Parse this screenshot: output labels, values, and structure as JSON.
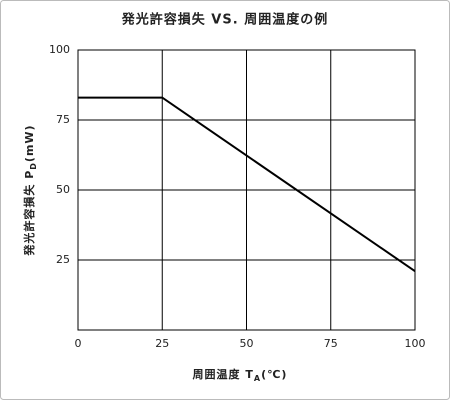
{
  "chart_data": {
    "type": "line",
    "title": "発光許容損失 VS. 周囲温度の例",
    "xlabel": [
      "周囲温度 T",
      "A",
      "(℃)"
    ],
    "ylabel": [
      "発光許容損失 P",
      "D",
      "(mW)"
    ],
    "x": [
      0,
      25,
      100
    ],
    "series": [
      {
        "color": "#000000",
        "values": [
          83,
          83,
          21
        ]
      }
    ],
    "xlim": [
      0,
      100
    ],
    "ylim": [
      0,
      100
    ],
    "xticks": [
      0,
      25,
      50,
      75,
      100
    ],
    "yticks": [
      25,
      50,
      75,
      100
    ],
    "grid": true
  }
}
